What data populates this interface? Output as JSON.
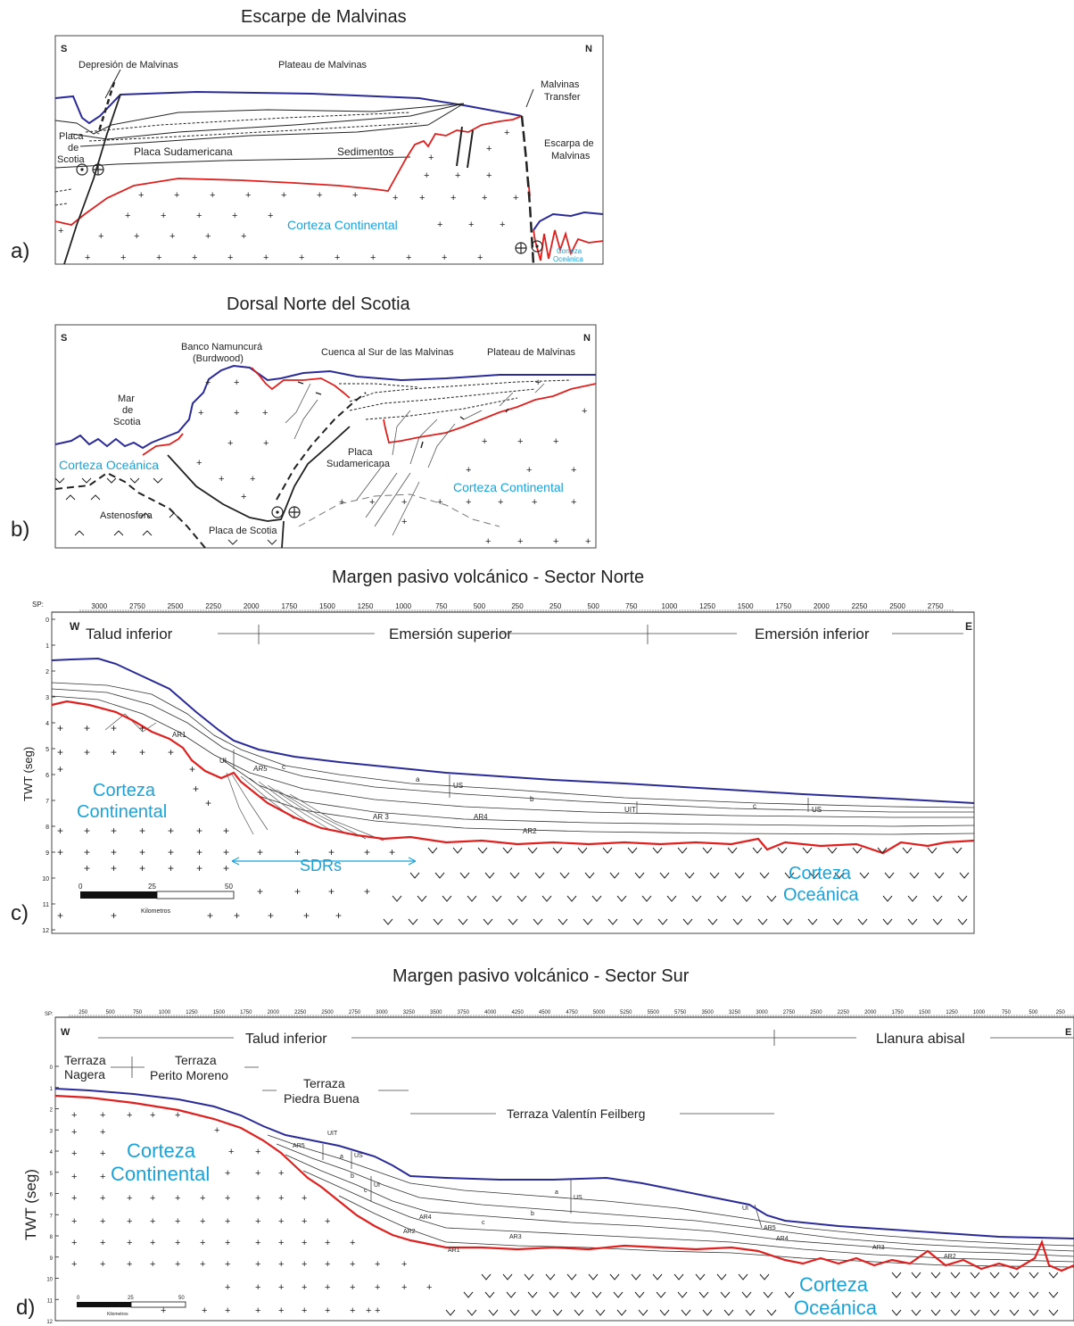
{
  "figure": {
    "colors": {
      "seafloor": "#2a2a9a",
      "basement": "#e0201e",
      "crust_label": "#1ba3d9",
      "line": "#222222"
    },
    "panels": [
      {
        "letter": "a)",
        "title": "Escarpe de Malvinas",
        "corner_left": "S",
        "corner_right": "N",
        "labels": {
          "depresion": "Depresión de Malvinas",
          "plateau": "Plateau de Malvinas",
          "transfer_1": "Malvinas",
          "transfer_2": "Transfer",
          "escarpa_1": "Escarpa de",
          "escarpa_2": "Malvinas",
          "placa_1": "Placa",
          "placa_2": "de",
          "placa_3": "Scotia",
          "placa_sudamericana": "Placa Sudamericana",
          "sedimentos": "Sedimentos",
          "corteza_continental": "Corteza Continental",
          "corteza_oceanica_1": "Corteza",
          "corteza_oceanica_2": "Oceánica"
        }
      },
      {
        "letter": "b)",
        "title": "Dorsal Norte del Scotia",
        "corner_left": "S",
        "corner_right": "N",
        "labels": {
          "banco_1": "Banco Namuncurá",
          "banco_2": "(Burdwood)",
          "cuenca": "Cuenca al Sur de las Malvinas",
          "plateau": "Plateau de Malvinas",
          "mar_1": "Mar",
          "mar_2": "de",
          "mar_3": "Scotia",
          "corteza_oceanica": "Corteza Oceánica",
          "placa_sud_1": "Placa",
          "placa_sud_2": "Sudamericana",
          "corteza_continental": "Corteza Continental",
          "astenosfera": "Astenosfera",
          "placa_scotia": "Placa de Scotia"
        }
      },
      {
        "letter": "c)",
        "title": "Margen pasivo volcánico - Sector Norte",
        "sp_prefix": "SP:",
        "sp_ticks": [
          "3000",
          "2750",
          "2500",
          "2250",
          "2000",
          "1750",
          "1500",
          "1250",
          "1000",
          "750",
          "500",
          "250",
          "250",
          "500",
          "750",
          "1000",
          "1250",
          "1500",
          "1750",
          "2000",
          "2250",
          "2500",
          "2750"
        ],
        "y_axis_label": "TWT (seg)",
        "y_ticks": [
          "0",
          "1",
          "2",
          "3",
          "4",
          "5",
          "6",
          "7",
          "8",
          "9",
          "10",
          "11",
          "12"
        ],
        "corner_left": "W",
        "corner_right": "E",
        "zones": [
          "Talud inferior",
          "Emersión superior",
          "Emersión inferior"
        ],
        "horizons": [
          "AR1",
          "UI",
          "AR5",
          "c",
          "a",
          "US",
          "b",
          "UIT",
          "c",
          "US",
          "AR 3",
          "AR4",
          "AR2"
        ],
        "corteza_continental_1": "Corteza",
        "corteza_continental_2": "Continental",
        "sdrs": "SDRs",
        "corteza_oceanica_1": "Corteza",
        "corteza_oceanica_2": "Oceánica",
        "scale_ticks": [
          "0",
          "25",
          "50"
        ],
        "scale_unit": "Kilometros"
      },
      {
        "letter": "d)",
        "title": "Margen pasivo volcánico - Sector Sur",
        "sp_prefix": "SP:",
        "sp_ticks": [
          "250",
          "500",
          "750",
          "1000",
          "1250",
          "1500",
          "1750",
          "2000",
          "2250",
          "2500",
          "2750",
          "3000",
          "3250",
          "3500",
          "3750",
          "4000",
          "4250",
          "4500",
          "4750",
          "5000",
          "5250",
          "5500",
          "5750",
          "3500",
          "3250",
          "3000",
          "2750",
          "2500",
          "2250",
          "2000",
          "1750",
          "1500",
          "1250",
          "1000",
          "750",
          "500",
          "250"
        ],
        "y_axis_label": "TWT (seg)",
        "y_ticks": [
          "0",
          "1",
          "2",
          "3",
          "4",
          "5",
          "6",
          "7",
          "8",
          "9",
          "10",
          "11",
          "12"
        ],
        "corner_left": "W",
        "corner_right": "E",
        "zones": [
          "Talud inferior",
          "Llanura abisal"
        ],
        "terrazas": {
          "nagera_1": "Terraza",
          "nagera_2": "Nagera",
          "perito_1": "Terraza",
          "perito_2": "Perito Moreno",
          "piedra_1": "Terraza",
          "piedra_2": "Piedra Buena",
          "valentin": "Terraza Valentín Feilberg"
        },
        "horizons": [
          "UIT",
          "US",
          "AR5",
          "a",
          "b",
          "c",
          "UI",
          "AR4",
          "AR2",
          "AR1",
          "a",
          "US",
          "b",
          "c",
          "AR3",
          "UI",
          "AR5",
          "AR4",
          "AR3",
          "AR2"
        ],
        "corteza_continental_1": "Corteza",
        "corteza_continental_2": "Continental",
        "corteza_oceanica_1": "Corteza",
        "corteza_oceanica_2": "Oceánica",
        "scale_ticks": [
          "0",
          "25",
          "50"
        ],
        "scale_unit": "Kilometros"
      }
    ]
  }
}
